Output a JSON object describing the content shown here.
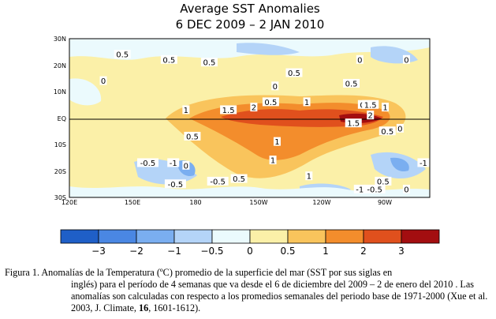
{
  "chart_data": {
    "type": "heatmap",
    "title": "Average SST Anomalies",
    "subtitle": "6 DEC 2009 – 2 JAN 2010",
    "x_ticks": [
      "120E",
      "150E",
      "180",
      "150W",
      "120W",
      "90W"
    ],
    "y_ticks": [
      "30N",
      "20N",
      "10N",
      "EQ",
      "10S",
      "20S",
      "30S"
    ],
    "x_range": [
      "120E",
      "70W"
    ],
    "y_range": [
      "30S",
      "30N"
    ],
    "contour_labels": [
      {
        "text": "0.5",
        "lon": 145,
        "lat": 24
      },
      {
        "text": "0",
        "lon": 136,
        "lat": 14
      },
      {
        "text": "0.5",
        "lon": 167,
        "lat": 22
      },
      {
        "text": "0.5",
        "lon": 186,
        "lat": 21
      },
      {
        "text": "0",
        "lon": 217,
        "lat": 12
      },
      {
        "text": "0.5",
        "lon": 226,
        "lat": 17
      },
      {
        "text": "0.5",
        "lon": 253,
        "lat": 13
      },
      {
        "text": "0",
        "lon": 257,
        "lat": 22
      },
      {
        "text": "0",
        "lon": 279,
        "lat": 22
      },
      {
        "text": "0.5",
        "lon": 260,
        "lat": 5
      },
      {
        "text": "1",
        "lon": 175,
        "lat": 3
      },
      {
        "text": "1.5",
        "lon": 195,
        "lat": 3
      },
      {
        "text": "2",
        "lon": 207,
        "lat": 4
      },
      {
        "text": "0.5",
        "lon": 215,
        "lat": 6
      },
      {
        "text": "1",
        "lon": 232,
        "lat": 6
      },
      {
        "text": "1.5",
        "lon": 262,
        "lat": 5
      },
      {
        "text": "1",
        "lon": 269,
        "lat": 4
      },
      {
        "text": "2",
        "lon": 262,
        "lat": 1
      },
      {
        "text": "1.5",
        "lon": 254,
        "lat": -2
      },
      {
        "text": "0",
        "lon": 276,
        "lat": -4
      },
      {
        "text": "0.5",
        "lon": 270,
        "lat": -5
      },
      {
        "text": "0.5",
        "lon": 178,
        "lat": -7
      },
      {
        "text": "1",
        "lon": 218,
        "lat": -9
      },
      {
        "text": "1",
        "lon": 216,
        "lat": -16
      },
      {
        "text": "-0.5",
        "lon": 157,
        "lat": -17
      },
      {
        "text": "-1",
        "lon": 169,
        "lat": -17
      },
      {
        "text": "0",
        "lon": 175,
        "lat": -18
      },
      {
        "text": "-1",
        "lon": 287,
        "lat": -17
      },
      {
        "text": "-0.5",
        "lon": 170,
        "lat": -25
      },
      {
        "text": "-0.5",
        "lon": 190,
        "lat": -24
      },
      {
        "text": "0.5",
        "lon": 200,
        "lat": -23
      },
      {
        "text": "1",
        "lon": 233,
        "lat": -22
      },
      {
        "text": "-1",
        "lon": 257,
        "lat": -27
      },
      {
        "text": "-0.5",
        "lon": 264,
        "lat": -27
      },
      {
        "text": "0.5",
        "lon": 268,
        "lat": -24
      },
      {
        "text": "0",
        "lon": 279,
        "lat": -27
      }
    ],
    "colorbar": {
      "ticks": [
        "−3",
        "−2",
        "−1",
        "−0.5",
        "0",
        "0.5",
        "1",
        "2",
        "3"
      ],
      "colors": [
        "#1f5fc7",
        "#4a87e3",
        "#7aaef0",
        "#b4d4f8",
        "#ebfafd",
        "#fbf0a8",
        "#f9c45c",
        "#f38d2c",
        "#e0501d",
        "#a30e10"
      ]
    },
    "units": "°C",
    "grid": false
  },
  "caption": {
    "lead": "Figura 1.  Anomalías de la Temperatura (ºC) promedio de la superficie del mar (SST por sus siglas en",
    "rest_a": "inglés) para el período de 4 semanas que va desde el  6 de diciembre del 2009 – 2 de enero del 2010 . Las anomalías son calculadas con respecto a los promedios semanales del periodo base de 1971-2000  (Xue et al. 2003, ",
    "journal": "J. Climate",
    "rest_b": ", ",
    "volume": "16",
    "rest_c": ", 1601-1612)."
  }
}
